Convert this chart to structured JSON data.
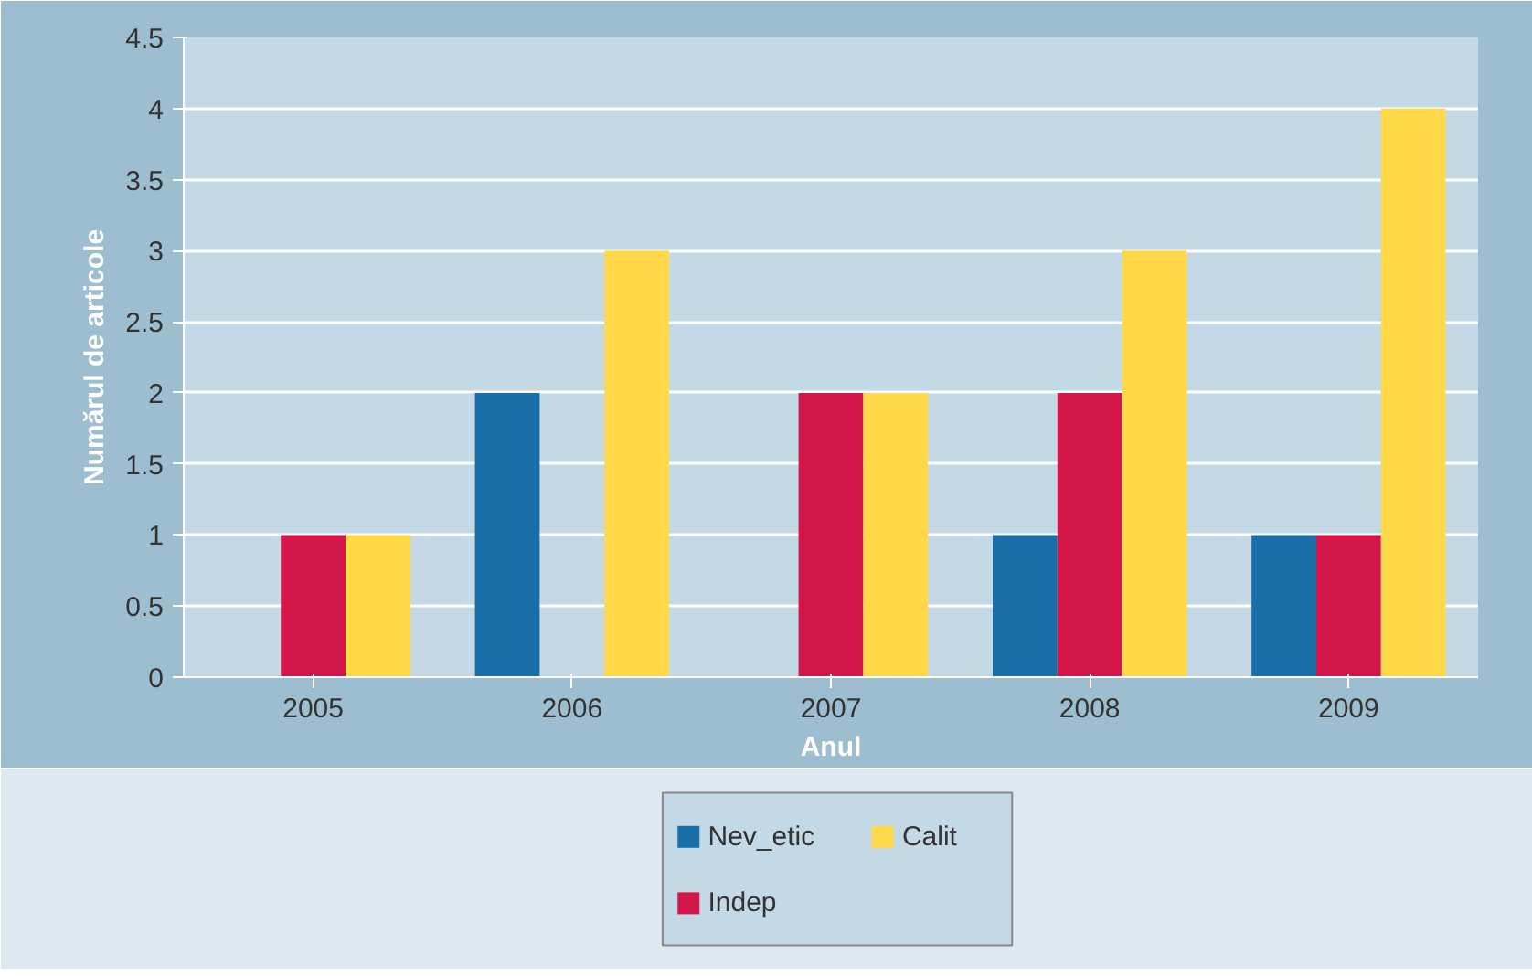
{
  "chart_data": {
    "type": "bar",
    "xlabel": "Anul",
    "ylabel": "Numărul de articole",
    "categories": [
      "2005",
      "2006",
      "2007",
      "2008",
      "2009"
    ],
    "series": [
      {
        "name": "Nev_etic",
        "color": "#1a6fa8",
        "values": [
          0,
          2,
          0,
          1,
          1
        ]
      },
      {
        "name": "Indep",
        "color": "#d4174a",
        "values": [
          1,
          0,
          2,
          2,
          1
        ]
      },
      {
        "name": "Calit",
        "color": "#ffd94a",
        "values": [
          1,
          3,
          2,
          3,
          4
        ]
      }
    ],
    "ylim": [
      0,
      4.5
    ],
    "yticks": [
      0,
      0.5,
      1,
      1.5,
      2,
      2.5,
      3,
      3.5,
      4,
      4.5
    ],
    "grid": "y",
    "legend": "bottom"
  }
}
